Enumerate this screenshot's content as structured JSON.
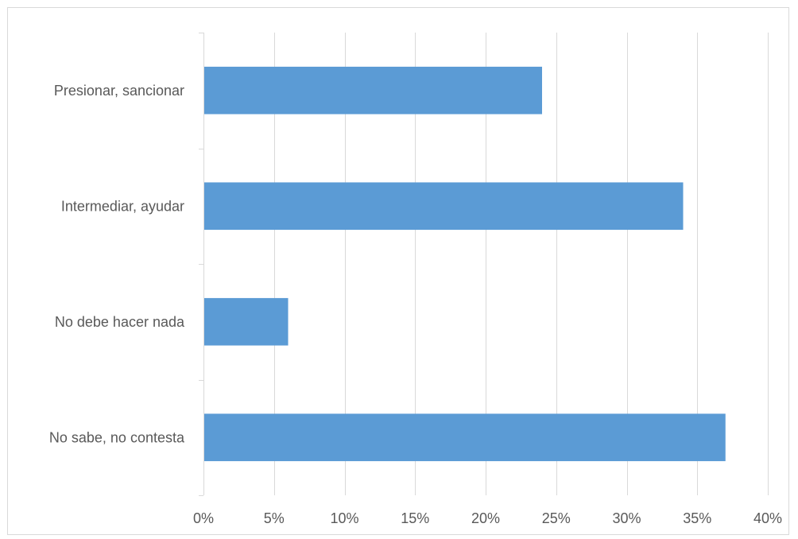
{
  "chart_data": {
    "type": "bar",
    "orientation": "horizontal",
    "categories": [
      "Presionar, sancionar",
      "Intermediar, ayudar",
      "No debe hacer nada",
      "No sabe, no contesta"
    ],
    "values": [
      24,
      34,
      6,
      37
    ],
    "unit": "%",
    "xlim": [
      0,
      40
    ],
    "x_ticks": [
      "0%",
      "5%",
      "10%",
      "15%",
      "20%",
      "25%",
      "30%",
      "35%",
      "40%"
    ],
    "bar_color": "#5b9bd5",
    "grid": true,
    "legend": "none",
    "title": "",
    "xlabel": "",
    "ylabel": ""
  }
}
